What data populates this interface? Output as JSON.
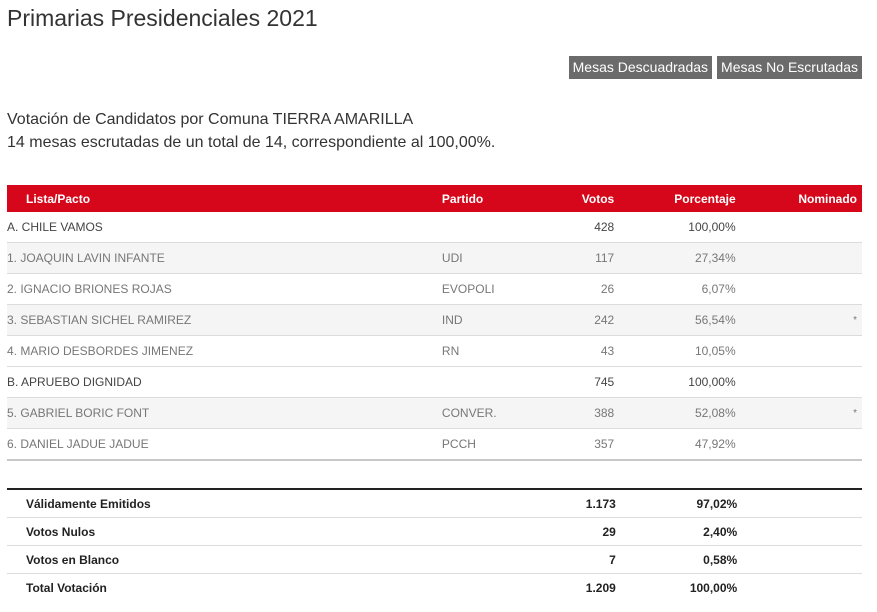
{
  "page": {
    "title": "Primarias Presidenciales 2021",
    "buttons": [
      "Mesas Descuadradas",
      "Mesas No Escrutadas"
    ],
    "info_line1": "Votación de Candidatos por Comuna TIERRA AMARILLA",
    "info_line2": "14 mesas escrutadas de un total de 14, correspondiente al 100,00%."
  },
  "table": {
    "headers": [
      "Lista/Pacto",
      "Partido",
      "Votos",
      "Porcentaje",
      "Nominado"
    ],
    "rows": [
      {
        "type": "pacto",
        "name": "A. CHILE VAMOS",
        "partido": "",
        "votos": "428",
        "pct": "100,00%",
        "nominado": ""
      },
      {
        "type": "cand",
        "name": "1. JOAQUIN LAVIN INFANTE",
        "partido": "UDI",
        "votos": "117",
        "pct": "27,34%",
        "nominado": ""
      },
      {
        "type": "cand",
        "name": "2. IGNACIO BRIONES ROJAS",
        "partido": "EVOPOLI",
        "votos": "26",
        "pct": "6,07%",
        "nominado": ""
      },
      {
        "type": "cand",
        "name": "3. SEBASTIAN SICHEL RAMIREZ",
        "partido": "IND",
        "votos": "242",
        "pct": "56,54%",
        "nominado": "*"
      },
      {
        "type": "cand",
        "name": "4. MARIO DESBORDES JIMENEZ",
        "partido": "RN",
        "votos": "43",
        "pct": "10,05%",
        "nominado": ""
      },
      {
        "type": "pacto",
        "name": "B. APRUEBO DIGNIDAD",
        "partido": "",
        "votos": "745",
        "pct": "100,00%",
        "nominado": ""
      },
      {
        "type": "cand",
        "name": "5. GABRIEL BORIC FONT",
        "partido": "CONVER.",
        "votos": "388",
        "pct": "52,08%",
        "nominado": "*"
      },
      {
        "type": "cand",
        "name": "6. DANIEL JADUE JADUE",
        "partido": "PCCH",
        "votos": "357",
        "pct": "47,92%",
        "nominado": ""
      }
    ]
  },
  "totals": [
    {
      "label": "Válidamente Emitidos",
      "votos": "1.173",
      "pct": "97,02%"
    },
    {
      "label": "Votos Nulos",
      "votos": "29",
      "pct": "2,40%"
    },
    {
      "label": "Votos en Blanco",
      "votos": "7",
      "pct": "0,58%"
    },
    {
      "label": "Total Votación",
      "votos": "1.209",
      "pct": "100,00%"
    }
  ]
}
